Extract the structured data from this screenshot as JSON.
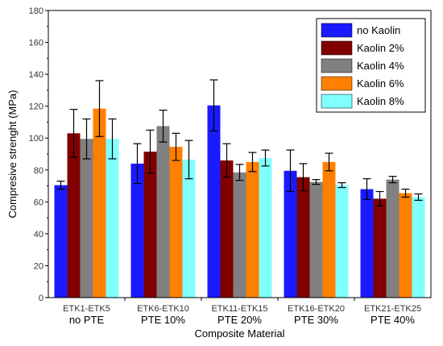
{
  "chart_data": {
    "type": "bar",
    "categories": [
      [
        "ETK1-ETK5",
        "no PTE"
      ],
      [
        "ETK6-ETK10",
        "PTE 10%"
      ],
      [
        "ETK11-ETK15",
        "PTE 20%"
      ],
      [
        "ETK16-ETK20",
        "PTE 30%"
      ],
      [
        "ETK21-ETK25",
        "PTE 40%"
      ]
    ],
    "series": [
      {
        "name": "no Kaolin",
        "color": "#1a1aff",
        "values": [
          70.5,
          84,
          120.5,
          79.5,
          68
        ],
        "errors": [
          2.5,
          12.5,
          16,
          13,
          6.5
        ]
      },
      {
        "name": "Kaolin 2%",
        "color": "#800000",
        "values": [
          103,
          91.5,
          86,
          75.5,
          62
        ],
        "errors": [
          15,
          13.5,
          10.5,
          8.5,
          4.5
        ]
      },
      {
        "name": "Kaolin 4%",
        "color": "#808080",
        "values": [
          99.5,
          107.5,
          78.5,
          72.5,
          74
        ],
        "errors": [
          12.5,
          10,
          5,
          1.5,
          2
        ]
      },
      {
        "name": "Kaolin 6%",
        "color": "#ff8000",
        "values": [
          118.5,
          94.5,
          85,
          85,
          65.5
        ],
        "errors": [
          17.5,
          8.5,
          6,
          5.5,
          2.5
        ]
      },
      {
        "name": "Kaolin 8%",
        "color": "#80ffff",
        "values": [
          99.5,
          86.5,
          87.5,
          70.5,
          63
        ],
        "errors": [
          12.5,
          12,
          5,
          1.5,
          2
        ]
      }
    ],
    "title": "",
    "xlabel": "Composite Material",
    "ylabel": "Compresive strenght (MPa)",
    "ylim": [
      0,
      180
    ],
    "yticks": [
      0,
      20,
      40,
      60,
      80,
      100,
      120,
      140,
      160,
      180
    ],
    "grid": false,
    "legend_position": "top-right"
  }
}
